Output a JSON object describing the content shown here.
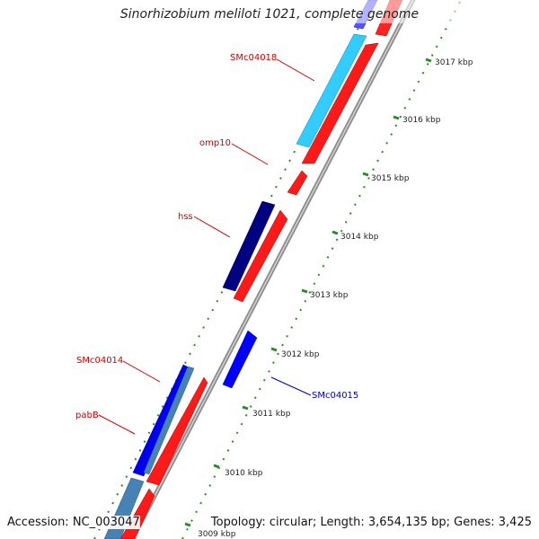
{
  "title": "Sinorhizobium meliloti 1021, complete genome",
  "footer": {
    "accession": "Accession: NC_003047",
    "summary": "Topology: circular; Length: 3,654,135 bp; Genes: 3,425"
  },
  "ticks": [
    "3017 kbp",
    "3016 kbp",
    "3015 kbp",
    "3014 kbp",
    "3013 kbp",
    "3012 kbp",
    "3011 kbp",
    "3010 kbp",
    "3009 kbp"
  ],
  "gene_labels": [
    {
      "name": "SMc04018",
      "color": "#cc0000"
    },
    {
      "name": "omp10",
      "color": "#cc0000"
    },
    {
      "name": "hss",
      "color": "#cc0000"
    },
    {
      "name": "SMc04014",
      "color": "#cc0000"
    },
    {
      "name": "pabB",
      "color": "#cc0000"
    },
    {
      "name": "SMc04015",
      "color": "#0000aa"
    }
  ],
  "colors": {
    "red": "#ff0000",
    "cyan": "#33ccff",
    "navy": "#000080",
    "blue": "#0000ff",
    "steel": "#4682b4",
    "tick": "#228822",
    "backbone": "#999999"
  }
}
